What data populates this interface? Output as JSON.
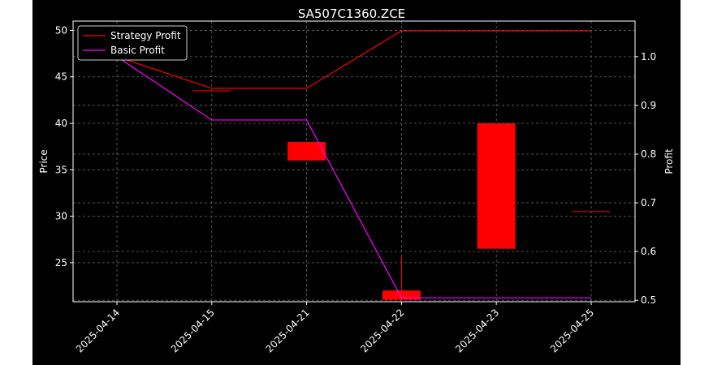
{
  "chart_data": {
    "type": "candlestick",
    "title": "SA507C1360.ZCE",
    "xlabel": "",
    "ylabel": "Price",
    "y2label": "Profit",
    "categories": [
      "2025-04-14",
      "2025-04-15",
      "2025-04-21",
      "2025-04-22",
      "2025-04-23",
      "2025-04-25"
    ],
    "ylim": [
      20.8,
      51.0
    ],
    "y2lim": [
      0.497,
      1.073
    ],
    "yticks": [
      25,
      30,
      35,
      40,
      45,
      50
    ],
    "y2ticks": [
      0.5,
      0.6,
      0.7,
      0.8,
      0.9,
      1.0
    ],
    "grid": true,
    "legend_position": "top-left",
    "candles": [
      {
        "x": "2025-04-14",
        "open": 47.0,
        "high": 47.0,
        "low": 47.0,
        "close": 47.0
      },
      {
        "x": "2025-04-15",
        "open": 43.5,
        "high": 43.5,
        "low": 43.5,
        "close": 43.5
      },
      {
        "x": "2025-04-21",
        "open": 38.0,
        "high": 38.0,
        "low": 36.0,
        "close": 36.0
      },
      {
        "x": "2025-04-22",
        "open": 22.0,
        "high": 25.7,
        "low": 21.0,
        "close": 21.0
      },
      {
        "x": "2025-04-23",
        "open": 40.0,
        "high": 40.0,
        "low": 26.5,
        "close": 26.5
      },
      {
        "x": "2025-04-25",
        "open": 30.5,
        "high": 30.5,
        "low": 30.5,
        "close": 30.5
      }
    ],
    "series": [
      {
        "name": "Strategy Profit",
        "color": "#ff0000",
        "values": [
          1.0,
          0.935,
          0.935,
          1.053,
          1.053,
          1.053
        ]
      },
      {
        "name": "Basic Profit",
        "color": "#ff00ff",
        "values": [
          1.0,
          0.87,
          0.87,
          0.505,
          0.505,
          0.505
        ]
      }
    ]
  },
  "colors": {
    "background": "#000000",
    "axes": "#ffffff",
    "grid": "#666666",
    "candle": "#ff0000"
  }
}
